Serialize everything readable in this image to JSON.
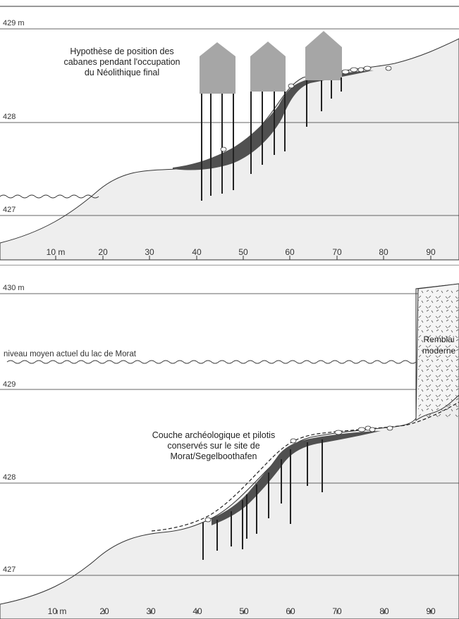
{
  "top": {
    "elev_labels": [
      "429 m",
      "428",
      "427"
    ],
    "annotation": [
      "Hypothèse de position des",
      "cabanes pendant l'occupation",
      "du Néolithique final"
    ],
    "ticks": [
      "10 m",
      "20",
      "30",
      "40",
      "50",
      "60",
      "70",
      "80",
      "90"
    ]
  },
  "bottom": {
    "elev_labels": [
      "430 m",
      "429",
      "428",
      "427"
    ],
    "water_label": "niveau moyen actuel du lac de Morat",
    "remblai": [
      "Remblai",
      "moderne"
    ],
    "annotation": [
      "Couche archéologique et pilotis",
      "conservés sur le site de",
      "Morat/Segelboothafen"
    ],
    "ticks": [
      "10 m",
      "20",
      "30",
      "40",
      "50",
      "60",
      "70",
      "80",
      "90"
    ]
  },
  "colors": {
    "ground": "#eeeeee",
    "layer": "#505050",
    "hut": "#a6a6a6",
    "remblai": "#f5f5f5"
  }
}
